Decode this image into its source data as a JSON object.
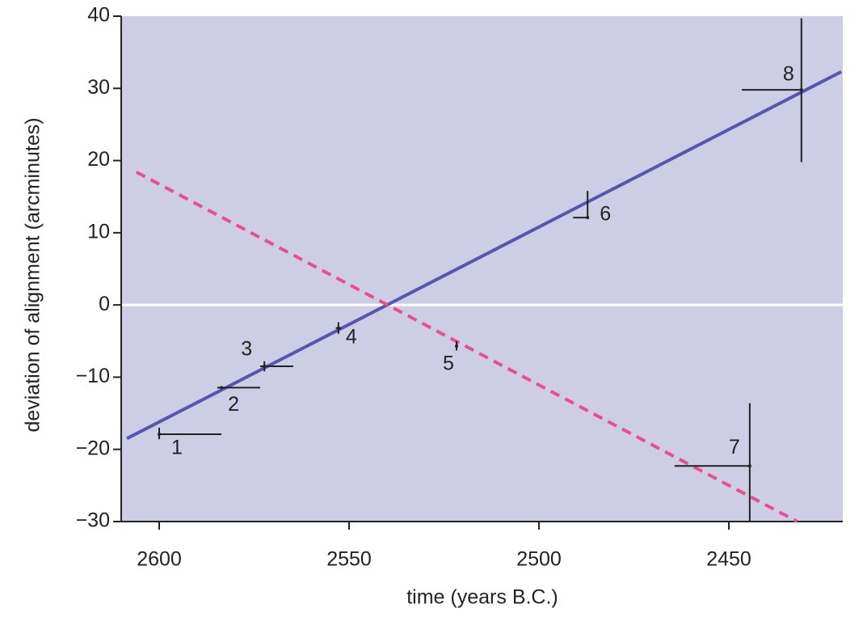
{
  "chart_data": {
    "type": "scatter",
    "xlabel": "time (years B.C.)",
    "ylabel": "deviation of alignment (arcminutes)",
    "xlim": [
      2610,
      2420
    ],
    "xticks": [
      2600,
      2550,
      2500,
      2450
    ],
    "ylim": [
      -30,
      40
    ],
    "yticks": [
      {
        "value": -30,
        "label": "−30"
      },
      {
        "value": -20,
        "label": "−20"
      },
      {
        "value": -10,
        "label": "−10"
      },
      0,
      10,
      20,
      30,
      40
    ],
    "background": "#cdcde6",
    "reference_line": {
      "y": 0,
      "color": "#ffffff"
    },
    "series": [
      {
        "color": "#222222",
        "labels": [
          "1",
          "2",
          "3",
          "4",
          "5",
          "6",
          "7",
          "8"
        ],
        "x": [
          2600,
          2583.6,
          2572.3,
          2552.8,
          2521.7,
          2487.2,
          2444.5,
          2430.9
        ],
        "values": [
          -17.9,
          -11.45,
          -8.5,
          -3.2,
          -5.7,
          12.1,
          -22.3,
          29.8
        ],
        "x_bar": [
          [
            2600,
            2583.6
          ],
          [
            2584.7,
            2573.4
          ],
          [
            2573.4,
            2564.7
          ],
          [
            2553.5,
            2552
          ],
          [
            2521.7,
            2521.7
          ],
          [
            2491,
            2487.2
          ],
          [
            2464.3,
            2444.5
          ],
          [
            2446.6,
            2430.9
          ]
        ],
        "y_bar": [
          [
            -17,
            -18.6
          ],
          [
            -11.45,
            -11.45
          ],
          [
            -7.8,
            -9.2
          ],
          [
            -2.4,
            -4
          ],
          [
            -5,
            -6.3
          ],
          [
            12.1,
            15.8
          ],
          [
            -13.6,
            -30
          ],
          [
            39.7,
            19.8
          ]
        ]
      }
    ],
    "lines": [
      {
        "color": "#5656ae",
        "dashed": false,
        "x": [
          2608.5,
          2420.4
        ],
        "values": [
          -18.5,
          32.3
        ]
      },
      {
        "color": "#ea4f8c",
        "dashed": true,
        "x": [
          2606,
          2432
        ],
        "values": [
          18.4,
          -30
        ]
      }
    ]
  }
}
